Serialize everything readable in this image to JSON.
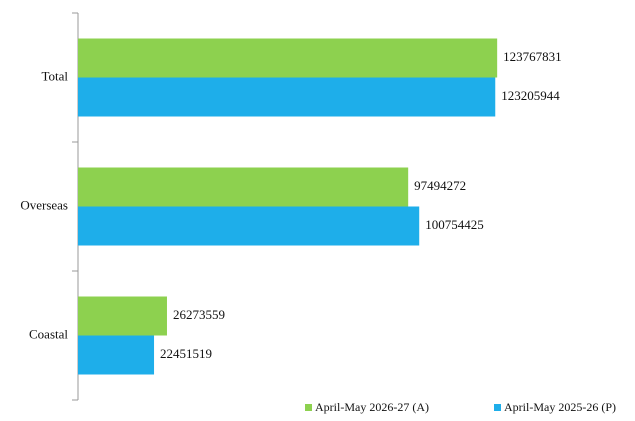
{
  "chart_data": {
    "type": "hbar",
    "categories": [
      "Total",
      "Overseas",
      "Coastal"
    ],
    "series": [
      {
        "name": "April-May 2026-27 (A)",
        "color": "#8dd14f",
        "values": [
          123767831,
          97494272,
          26273559
        ]
      },
      {
        "name": "April-May 2025-26 (P)",
        "color": "#1eaeea",
        "values": [
          123205944,
          100754425,
          22451519
        ]
      }
    ],
    "xlim": [
      0,
      150000000
    ],
    "legend": "bottom-right"
  }
}
